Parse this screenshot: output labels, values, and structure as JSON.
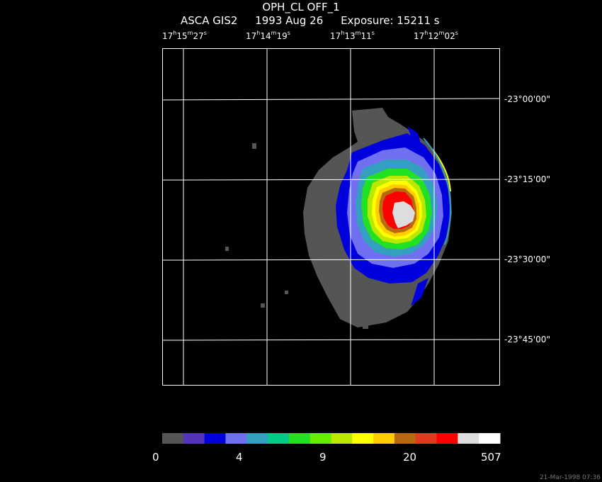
{
  "header": {
    "title": "OPH_CL OFF_1",
    "instrument": "ASCA GIS2",
    "date": "1993 Aug 26",
    "exposure": "Exposure: 15211 s"
  },
  "ra_axis": {
    "ticks": [
      {
        "h": "17",
        "m": "15",
        "s": "27"
      },
      {
        "h": "17",
        "m": "14",
        "s": "19"
      },
      {
        "h": "17",
        "m": "13",
        "s": "11"
      },
      {
        "h": "17",
        "m": "12",
        "s": "02"
      }
    ]
  },
  "dec_axis": {
    "ticks": [
      "-23°00'00\"",
      "-23°15'00\"",
      "-23°30'00\"",
      "-23°45'00\""
    ]
  },
  "colorbar": {
    "colors": [
      "#555555",
      "#5533bb",
      "#0000dd",
      "#6f6ff0",
      "#33a0c0",
      "#00cc88",
      "#22e022",
      "#66ee00",
      "#bbe800",
      "#ffff00",
      "#ffcc00",
      "#b8680f",
      "#e33a1f",
      "#ff0000",
      "#dddddd",
      "#ffffff"
    ],
    "labels": [
      "0",
      "4",
      "9",
      "20",
      "507"
    ]
  },
  "image": {
    "contour_colors": {
      "gray": "#555555",
      "blue": "#0000dd",
      "lightblue": "#6f6ff0",
      "teal": "#33a0c0",
      "green": "#22e022",
      "yellowgreen": "#bbe800",
      "yellow": "#ffff00",
      "orange": "#ffcc00",
      "brown": "#b8680f",
      "red": "#ff0000",
      "white": "#dddddd"
    }
  },
  "footer": {
    "timestamp": "21-Mar-1998 07:36"
  }
}
